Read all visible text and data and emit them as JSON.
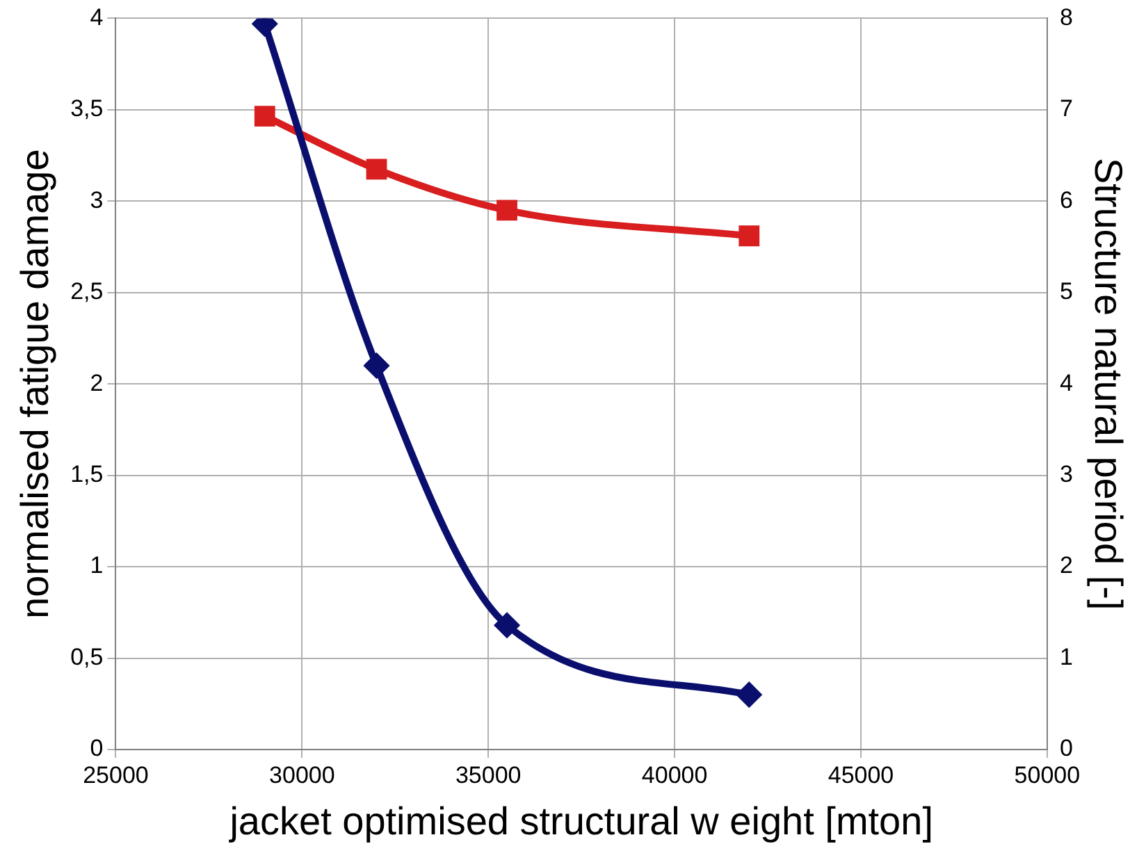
{
  "chart_data": {
    "type": "line",
    "xlabel": "jacket optimised structural w eight [mton]",
    "ylabel": "normalised fatigue damage",
    "y2label": "Structure natural period [-]",
    "x": [
      29000,
      32000,
      35500,
      42000
    ],
    "series": [
      {
        "color": "#0a0f6e",
        "values": [
          3.97,
          2.1,
          0.68,
          0.3
        ],
        "marker": "diamond"
      },
      {
        "color": "#d81e1e",
        "values": [
          6.93,
          6.35,
          5.9,
          5.62
        ],
        "marker": "square",
        "axis": "y2"
      }
    ],
    "xlim": [
      25000,
      50000
    ],
    "xticks": [
      25000,
      30000,
      35000,
      40000,
      45000,
      50000
    ],
    "ylim": [
      0,
      4
    ],
    "yticks": [
      0,
      {
        "value": 0.5,
        "label": "0,5"
      },
      1,
      {
        "value": 1.5,
        "label": "1,5"
      },
      2,
      {
        "value": 2.5,
        "label": "2,5"
      },
      3,
      {
        "value": 3.5,
        "label": "3,5"
      },
      4
    ],
    "y2lim": [
      0,
      8
    ],
    "y2ticks": [
      0,
      1,
      2,
      3,
      4,
      5,
      6,
      7,
      8
    ],
    "grid": true,
    "legend": false,
    "line_style": "solid"
  }
}
